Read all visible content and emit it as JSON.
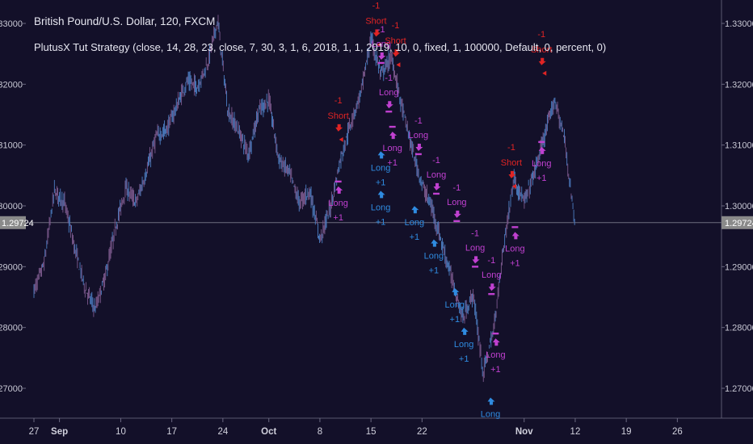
{
  "header": {
    "symbol_title": "British Pound/U.S. Dollar, 120, FXCM",
    "study_title": "PlutusX Tut Strategy (close, 14, 28, 23, close, 7, 30, 3, 1, 6, 2018, 1, 1, 2019, 10, 0, fixed, 1, 100000, Default, 0, percent, 0)"
  },
  "colors": {
    "background": "#131029",
    "candle": "#4d7fc4",
    "long": "#2f8be0",
    "long_exit": "#c040d0",
    "short": "#e02424",
    "last_price_label_bg": "#8a8a8a"
  },
  "chart_data": {
    "type": "line",
    "title": "British Pound/U.S. Dollar, 120, FXCM",
    "ylim": [
      1.2655,
      1.3335
    ],
    "y_ticks": [
      "1.27000",
      "1.28000",
      "1.29000",
      "1.30000",
      "1.31000",
      "1.32000",
      "1.33000"
    ],
    "last_price": "1.29724",
    "x_ticks": [
      "27",
      "Sep",
      "10",
      "17",
      "24",
      "Oct",
      "8",
      "15",
      "22",
      "Nov",
      "12",
      "19",
      "26"
    ],
    "x_tick_index": [
      0,
      5,
      17,
      27,
      37,
      46,
      56,
      66,
      76,
      96,
      106,
      116,
      126
    ],
    "x_max_index": 130,
    "series": [
      {
        "x": [
          0,
          2,
          4,
          6,
          8,
          10,
          12,
          14,
          16,
          18,
          20,
          22,
          24,
          26,
          28,
          30,
          32,
          34,
          36,
          38,
          40,
          42,
          44,
          46,
          48,
          50,
          52,
          54,
          56,
          58,
          60,
          62,
          64,
          66,
          68,
          70,
          72,
          74,
          76,
          78,
          80,
          82,
          84,
          86,
          88,
          90,
          92,
          94,
          96,
          98,
          100,
          102,
          104,
          106
        ],
        "values": [
          1.286,
          1.2905,
          1.3025,
          1.3005,
          1.293,
          1.2865,
          1.283,
          1.2885,
          1.2965,
          1.303,
          1.3005,
          1.3055,
          1.3115,
          1.3125,
          1.3165,
          1.3205,
          1.3195,
          1.3235,
          1.3305,
          1.3155,
          1.3125,
          1.3085,
          1.3155,
          1.3175,
          1.3075,
          1.3055,
          1.3005,
          1.3025,
          1.2945,
          1.2995,
          1.3075,
          1.3135,
          1.3185,
          1.3275,
          1.3215,
          1.3245,
          1.3165,
          1.3095,
          1.3035,
          1.2995,
          1.2935,
          1.2875,
          1.2815,
          1.2855,
          1.2725,
          1.2795,
          1.2935,
          1.3045,
          1.3005,
          1.3055,
          1.3115,
          1.3175,
          1.3105,
          1.2965
        ]
      }
    ],
    "signals": [
      {
        "type": "short",
        "label": "Short",
        "qty": "-1",
        "x": 59.6,
        "y": 1.3109
      },
      {
        "type": "exit",
        "label": "Long",
        "qty": "+1",
        "x": 59.6,
        "y": 1.304
      },
      {
        "type": "short",
        "label": "Short",
        "qty": "-1",
        "x": 67.0,
        "y": 1.3265
      },
      {
        "type": "exit",
        "label": "Long",
        "qty": "-1",
        "x": 68.0,
        "y": 1.3235
      },
      {
        "type": "short",
        "label": "Short",
        "qty": "-1",
        "x": 70.8,
        "y": 1.3232
      },
      {
        "type": "exit",
        "label": "Long",
        "qty": "-1",
        "x": 69.5,
        "y": 1.3155
      },
      {
        "type": "exit",
        "label": "Long",
        "qty": "+1",
        "x": 70.2,
        "y": 1.313
      },
      {
        "type": "long",
        "label": "Long",
        "qty": "+1",
        "x": 67.9,
        "y": 1.3095
      },
      {
        "type": "long",
        "label": "Long",
        "qty": "+1",
        "x": 67.9,
        "y": 1.303
      },
      {
        "type": "exit",
        "label": "Long",
        "qty": "-1",
        "x": 75.3,
        "y": 1.3085
      },
      {
        "type": "long",
        "label": "Long",
        "qty": "+1",
        "x": 74.5,
        "y": 1.3005
      },
      {
        "type": "exit",
        "label": "Long",
        "qty": "-1",
        "x": 78.8,
        "y": 1.302
      },
      {
        "type": "long",
        "label": "Long",
        "qty": "+1",
        "x": 78.3,
        "y": 1.295
      },
      {
        "type": "exit",
        "label": "Long",
        "qty": "-1",
        "x": 82.8,
        "y": 1.2975
      },
      {
        "type": "long",
        "label": "Long",
        "qty": "+1",
        "x": 82.4,
        "y": 1.287
      },
      {
        "type": "exit",
        "label": "Long",
        "qty": "-1",
        "x": 86.4,
        "y": 1.29
      },
      {
        "type": "long",
        "label": "Long",
        "qty": "+1",
        "x": 84.2,
        "y": 1.2805
      },
      {
        "type": "exit",
        "label": "Long",
        "qty": "-1",
        "x": 89.6,
        "y": 1.2855
      },
      {
        "type": "exit",
        "label": "Long",
        "qty": "+1",
        "x": 90.4,
        "y": 1.279
      },
      {
        "type": "long",
        "label": "Long",
        "qty": "",
        "x": 89.4,
        "y": 1.269
      },
      {
        "type": "short",
        "label": "Short",
        "qty": "-1",
        "x": 93.5,
        "y": 1.3032
      },
      {
        "type": "exit",
        "label": "Long",
        "qty": "+1",
        "x": 94.2,
        "y": 1.2965
      },
      {
        "type": "short",
        "label": "Short",
        "qty": "-1",
        "x": 99.4,
        "y": 1.3218
      },
      {
        "type": "exit",
        "label": "Long",
        "qty": "+1",
        "x": 99.4,
        "y": 1.3105
      }
    ]
  }
}
